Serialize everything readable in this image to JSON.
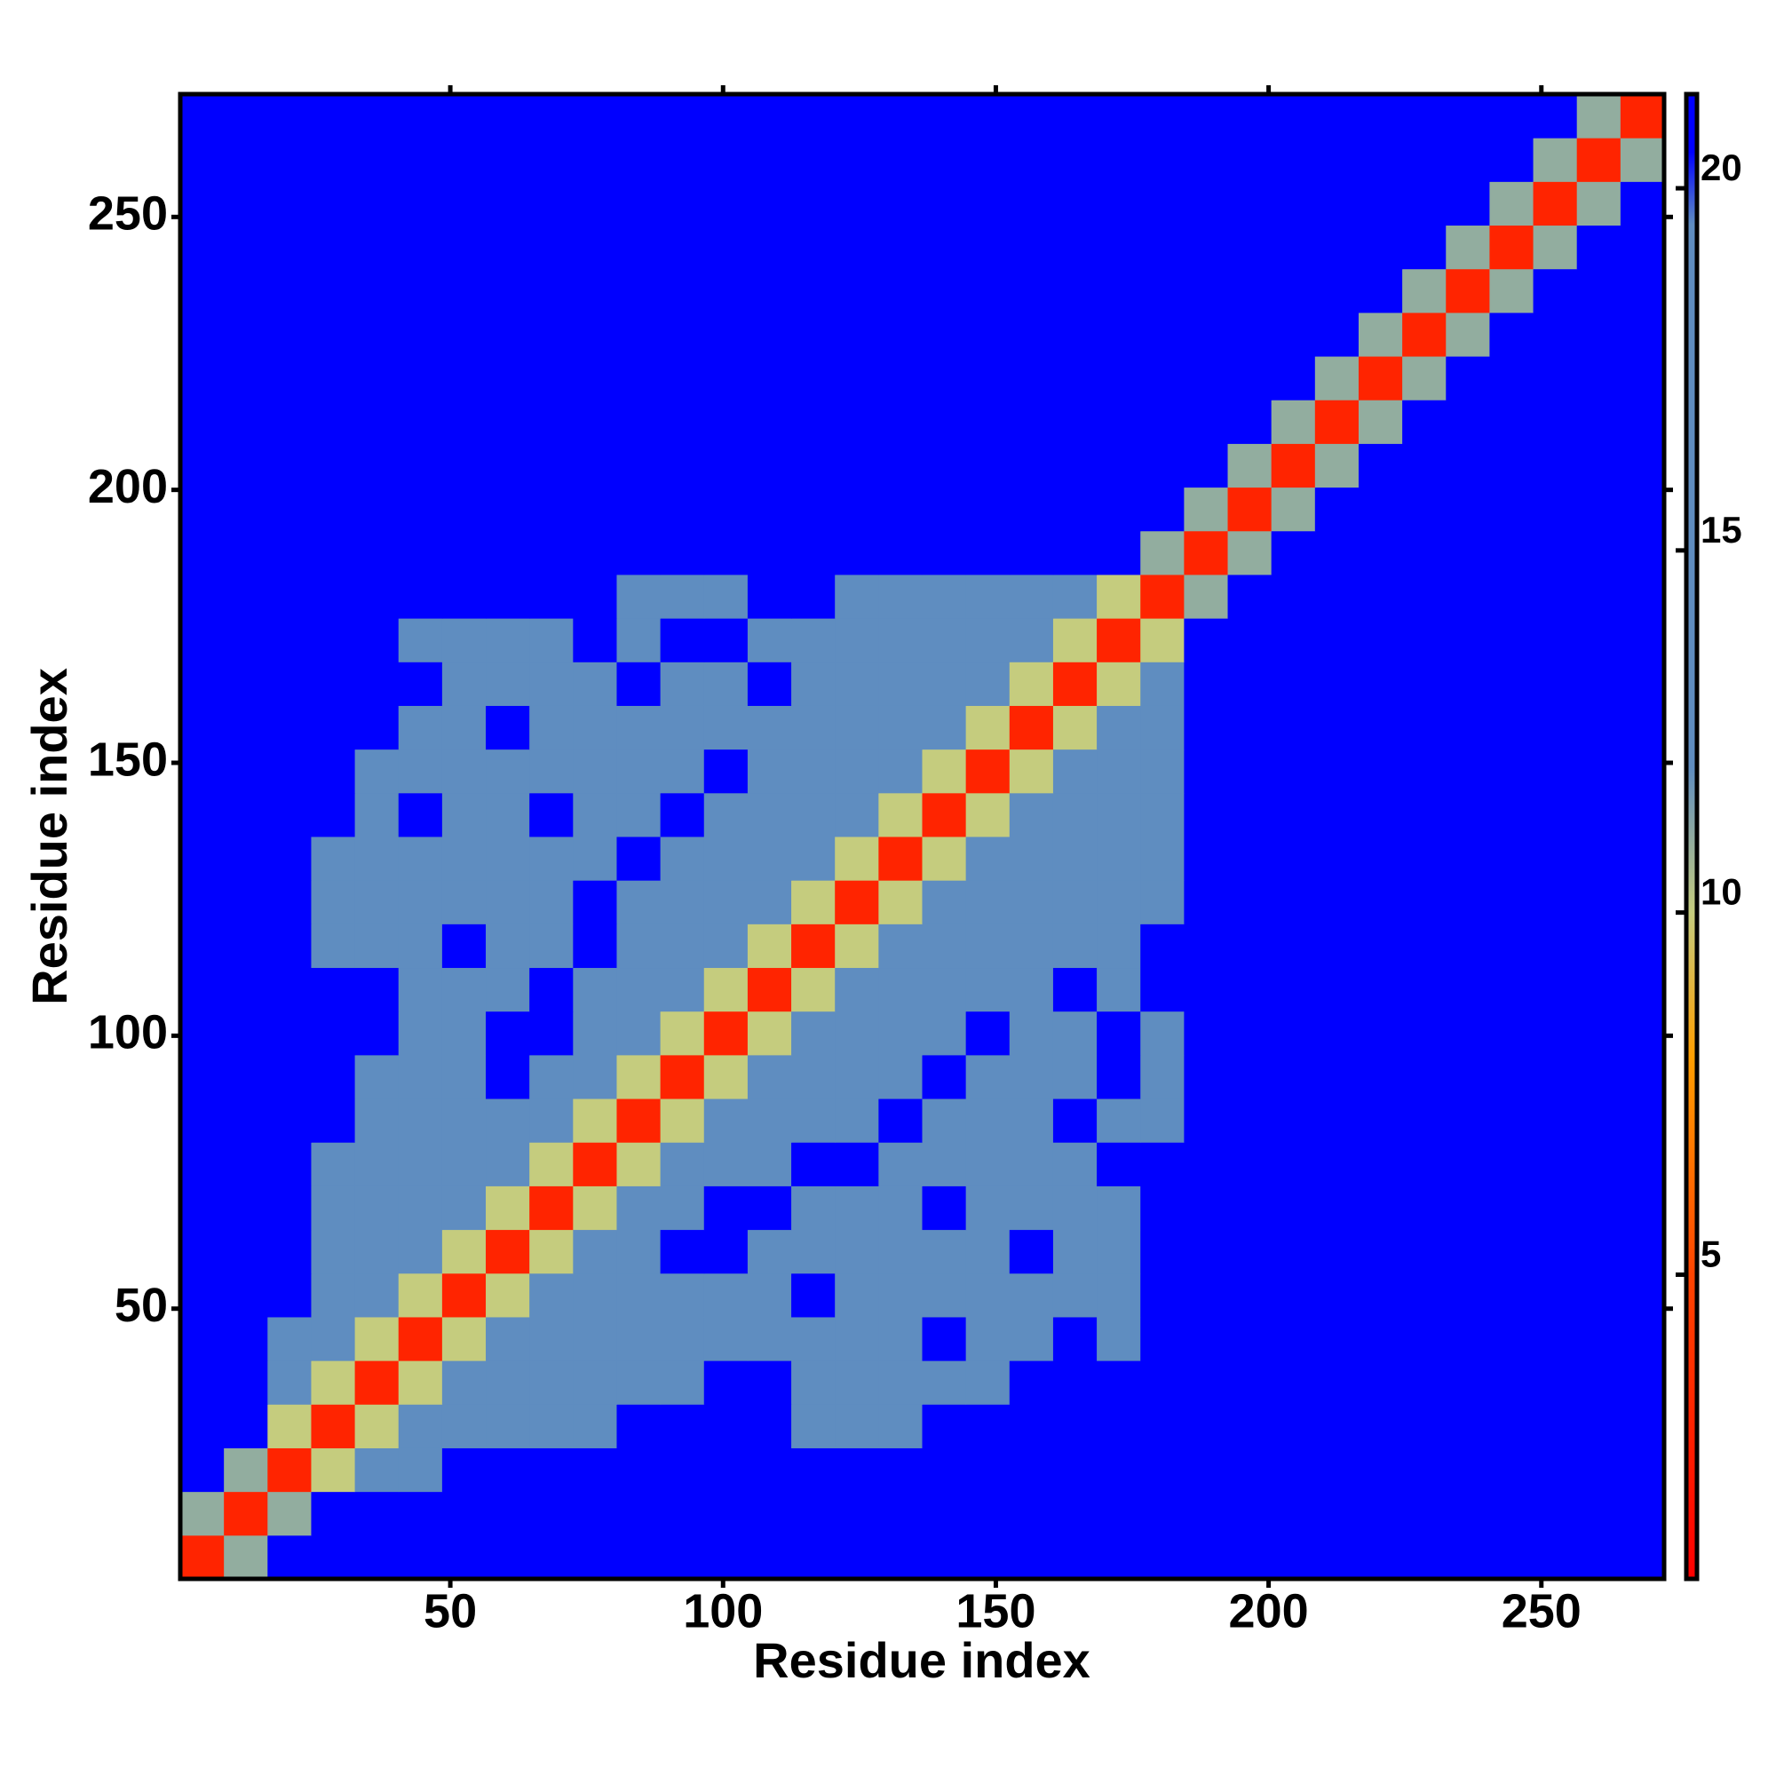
{
  "chart_data": {
    "type": "heatmap",
    "x_label": "Residue index",
    "y_label": "Residue index",
    "xlim": [
      0.5,
      272.5
    ],
    "ylim": [
      0.5,
      272.5
    ],
    "xticks": [
      50,
      100,
      150,
      200,
      250
    ],
    "yticks": [
      50,
      100,
      150,
      200,
      250
    ],
    "bin_edges": [
      0.5,
      8.5,
      16.5,
      24.5,
      32.5,
      40.5,
      48.5,
      56.5,
      64.5,
      72.5,
      80.5,
      88.5,
      96.5,
      104.5,
      112.5,
      120.5,
      128.5,
      136.5,
      144.5,
      152.5,
      160.5,
      168.5,
      176.5,
      184.5,
      192.5,
      200.5,
      208.5,
      216.5,
      224.5,
      232.5,
      240.5,
      248.5,
      256.5,
      264.5,
      272.5
    ],
    "zlim": [
      0.8,
      21.3
    ],
    "zticks": [
      5,
      10,
      15,
      20
    ],
    "colorscale": [
      [
        0.8,
        "#ff0000"
      ],
      [
        5,
        "#ff4400"
      ],
      [
        8,
        "#ff9f00"
      ],
      [
        10,
        "#c5cc7e"
      ],
      [
        12,
        "#5f8dc0"
      ],
      [
        19.5,
        "#5f8dc0"
      ],
      [
        20.5,
        "#0000ff"
      ],
      [
        21.3,
        "#0000ff"
      ]
    ],
    "values": [
      [
        3,
        11,
        21,
        21,
        21,
        21,
        21,
        21,
        21,
        21,
        21,
        21,
        21,
        21,
        21,
        21,
        21,
        21,
        21,
        21,
        21,
        21,
        21,
        21,
        21,
        21,
        21,
        21,
        21,
        21,
        21,
        21,
        21,
        21
      ],
      [
        11,
        3,
        11,
        21,
        21,
        21,
        21,
        21,
        21,
        21,
        21,
        21,
        21,
        21,
        21,
        21,
        21,
        21,
        21,
        21,
        21,
        21,
        21,
        21,
        21,
        21,
        21,
        21,
        21,
        21,
        21,
        21,
        21,
        21
      ],
      [
        21,
        11,
        3,
        10,
        15,
        15,
        21,
        21,
        21,
        21,
        21,
        21,
        21,
        21,
        21,
        21,
        21,
        21,
        21,
        21,
        21,
        21,
        21,
        21,
        21,
        21,
        21,
        21,
        21,
        21,
        21,
        21,
        21,
        21
      ],
      [
        21,
        21,
        10,
        3,
        10,
        13,
        15,
        15,
        15,
        15,
        21,
        21,
        21,
        21,
        15,
        15,
        15,
        21,
        21,
        21,
        21,
        21,
        21,
        21,
        21,
        21,
        21,
        21,
        21,
        21,
        21,
        21,
        21,
        21
      ],
      [
        21,
        21,
        15,
        10,
        3,
        10,
        13,
        15,
        15,
        15,
        15,
        15,
        21,
        21,
        15,
        15,
        15,
        15,
        15,
        21,
        21,
        21,
        21,
        21,
        21,
        21,
        21,
        21,
        21,
        21,
        21,
        21,
        21,
        21
      ],
      [
        21,
        21,
        15,
        13,
        10,
        3,
        10,
        13,
        15,
        15,
        15,
        15,
        15,
        15,
        15,
        15,
        15,
        21,
        15,
        15,
        21,
        15,
        21,
        21,
        21,
        21,
        21,
        21,
        21,
        21,
        21,
        21,
        21,
        21
      ],
      [
        21,
        21,
        21,
        15,
        13,
        10,
        3,
        10,
        13,
        15,
        15,
        15,
        15,
        15,
        21,
        15,
        15,
        15,
        15,
        15,
        15,
        15,
        21,
        21,
        21,
        21,
        21,
        21,
        21,
        21,
        21,
        21,
        21,
        21
      ],
      [
        21,
        21,
        21,
        15,
        15,
        13,
        10,
        3,
        10,
        13,
        15,
        21,
        21,
        15,
        15,
        15,
        15,
        15,
        15,
        21,
        15,
        15,
        21,
        21,
        21,
        21,
        21,
        21,
        21,
        21,
        21,
        21,
        21,
        21
      ],
      [
        21,
        21,
        21,
        15,
        15,
        15,
        13,
        10,
        3,
        10,
        13,
        15,
        21,
        21,
        15,
        15,
        15,
        21,
        15,
        15,
        15,
        15,
        21,
        21,
        21,
        21,
        21,
        21,
        21,
        21,
        21,
        21,
        21,
        21
      ],
      [
        21,
        21,
        21,
        15,
        15,
        15,
        15,
        13,
        10,
        3,
        10,
        13,
        15,
        15,
        21,
        21,
        15,
        15,
        15,
        15,
        15,
        21,
        21,
        21,
        21,
        21,
        21,
        21,
        21,
        21,
        21,
        21,
        21,
        21
      ],
      [
        21,
        21,
        21,
        21,
        15,
        15,
        15,
        15,
        13,
        10,
        3,
        10,
        13,
        15,
        15,
        15,
        21,
        15,
        15,
        15,
        21,
        15,
        15,
        21,
        21,
        21,
        21,
        21,
        21,
        21,
        21,
        21,
        21,
        21
      ],
      [
        21,
        21,
        21,
        21,
        15,
        15,
        15,
        21,
        15,
        13,
        10,
        3,
        10,
        13,
        15,
        15,
        15,
        21,
        15,
        15,
        15,
        21,
        15,
        21,
        21,
        21,
        21,
        21,
        21,
        21,
        21,
        21,
        21,
        21
      ],
      [
        21,
        21,
        21,
        21,
        21,
        15,
        15,
        21,
        21,
        15,
        13,
        10,
        3,
        10,
        13,
        15,
        15,
        15,
        21,
        15,
        15,
        21,
        15,
        21,
        21,
        21,
        21,
        21,
        21,
        21,
        21,
        21,
        21,
        21
      ],
      [
        21,
        21,
        21,
        21,
        21,
        15,
        15,
        15,
        21,
        15,
        15,
        13,
        10,
        3,
        10,
        13,
        15,
        15,
        15,
        15,
        21,
        15,
        21,
        21,
        21,
        21,
        21,
        21,
        21,
        21,
        21,
        21,
        21,
        21
      ],
      [
        21,
        21,
        21,
        15,
        15,
        15,
        21,
        15,
        15,
        21,
        15,
        15,
        13,
        10,
        3,
        10,
        13,
        15,
        15,
        15,
        15,
        15,
        21,
        21,
        21,
        21,
        21,
        21,
        21,
        21,
        21,
        21,
        21,
        21
      ],
      [
        21,
        21,
        21,
        15,
        15,
        15,
        15,
        15,
        15,
        21,
        15,
        15,
        15,
        13,
        10,
        3,
        10,
        13,
        15,
        15,
        15,
        15,
        15,
        21,
        21,
        21,
        21,
        21,
        21,
        21,
        21,
        21,
        21,
        21
      ],
      [
        21,
        21,
        21,
        15,
        15,
        15,
        15,
        15,
        15,
        15,
        21,
        15,
        15,
        15,
        13,
        10,
        3,
        10,
        13,
        15,
        15,
        15,
        15,
        21,
        21,
        21,
        21,
        21,
        21,
        21,
        21,
        21,
        21,
        21
      ],
      [
        21,
        21,
        21,
        21,
        15,
        21,
        15,
        15,
        21,
        15,
        15,
        21,
        15,
        15,
        15,
        13,
        10,
        3,
        10,
        13,
        15,
        15,
        15,
        21,
        21,
        21,
        21,
        21,
        21,
        21,
        21,
        21,
        21,
        21
      ],
      [
        21,
        21,
        21,
        21,
        15,
        15,
        15,
        15,
        15,
        15,
        15,
        15,
        21,
        15,
        15,
        15,
        13,
        10,
        3,
        10,
        13,
        15,
        15,
        21,
        21,
        21,
        21,
        21,
        21,
        21,
        21,
        21,
        21,
        21
      ],
      [
        21,
        21,
        21,
        21,
        21,
        15,
        15,
        21,
        15,
        15,
        15,
        15,
        15,
        15,
        15,
        15,
        15,
        13,
        10,
        3,
        10,
        13,
        15,
        21,
        21,
        21,
        21,
        21,
        21,
        21,
        21,
        21,
        21,
        21
      ],
      [
        21,
        21,
        21,
        21,
        21,
        21,
        15,
        15,
        15,
        15,
        21,
        15,
        15,
        21,
        15,
        15,
        15,
        15,
        13,
        10,
        3,
        10,
        13,
        21,
        21,
        21,
        21,
        21,
        21,
        21,
        21,
        21,
        21,
        21
      ],
      [
        21,
        21,
        21,
        21,
        21,
        15,
        15,
        15,
        15,
        21,
        15,
        21,
        21,
        15,
        15,
        15,
        15,
        15,
        15,
        13,
        10,
        3,
        10,
        21,
        21,
        21,
        21,
        21,
        21,
        21,
        21,
        21,
        21,
        21
      ],
      [
        21,
        21,
        21,
        21,
        21,
        21,
        21,
        21,
        21,
        21,
        15,
        15,
        15,
        21,
        21,
        15,
        15,
        15,
        15,
        15,
        13,
        10,
        3,
        11,
        21,
        21,
        21,
        21,
        21,
        21,
        21,
        21,
        21,
        21
      ],
      [
        21,
        21,
        21,
        21,
        21,
        21,
        21,
        21,
        21,
        21,
        21,
        21,
        21,
        21,
        21,
        21,
        21,
        21,
        21,
        21,
        21,
        21,
        11,
        3,
        11,
        21,
        21,
        21,
        21,
        21,
        21,
        21,
        21,
        21
      ],
      [
        21,
        21,
        21,
        21,
        21,
        21,
        21,
        21,
        21,
        21,
        21,
        21,
        21,
        21,
        21,
        21,
        21,
        21,
        21,
        21,
        21,
        21,
        21,
        11,
        3,
        11,
        21,
        21,
        21,
        21,
        21,
        21,
        21,
        21
      ],
      [
        21,
        21,
        21,
        21,
        21,
        21,
        21,
        21,
        21,
        21,
        21,
        21,
        21,
        21,
        21,
        21,
        21,
        21,
        21,
        21,
        21,
        21,
        21,
        21,
        11,
        3,
        11,
        21,
        21,
        21,
        21,
        21,
        21,
        21
      ],
      [
        21,
        21,
        21,
        21,
        21,
        21,
        21,
        21,
        21,
        21,
        21,
        21,
        21,
        21,
        21,
        21,
        21,
        21,
        21,
        21,
        21,
        21,
        21,
        21,
        21,
        11,
        3,
        11,
        21,
        21,
        21,
        21,
        21,
        21
      ],
      [
        21,
        21,
        21,
        21,
        21,
        21,
        21,
        21,
        21,
        21,
        21,
        21,
        21,
        21,
        21,
        21,
        21,
        21,
        21,
        21,
        21,
        21,
        21,
        21,
        21,
        21,
        11,
        3,
        11,
        21,
        21,
        21,
        21,
        21
      ],
      [
        21,
        21,
        21,
        21,
        21,
        21,
        21,
        21,
        21,
        21,
        21,
        21,
        21,
        21,
        21,
        21,
        21,
        21,
        21,
        21,
        21,
        21,
        21,
        21,
        21,
        21,
        21,
        11,
        3,
        11,
        21,
        21,
        21,
        21
      ],
      [
        21,
        21,
        21,
        21,
        21,
        21,
        21,
        21,
        21,
        21,
        21,
        21,
        21,
        21,
        21,
        21,
        21,
        21,
        21,
        21,
        21,
        21,
        21,
        21,
        21,
        21,
        21,
        21,
        11,
        3,
        11,
        21,
        21,
        21
      ],
      [
        21,
        21,
        21,
        21,
        21,
        21,
        21,
        21,
        21,
        21,
        21,
        21,
        21,
        21,
        21,
        21,
        21,
        21,
        21,
        21,
        21,
        21,
        21,
        21,
        21,
        21,
        21,
        21,
        21,
        11,
        3,
        11,
        21,
        21
      ],
      [
        21,
        21,
        21,
        21,
        21,
        21,
        21,
        21,
        21,
        21,
        21,
        21,
        21,
        21,
        21,
        21,
        21,
        21,
        21,
        21,
        21,
        21,
        21,
        21,
        21,
        21,
        21,
        21,
        21,
        21,
        11,
        3,
        11,
        21
      ],
      [
        21,
        21,
        21,
        21,
        21,
        21,
        21,
        21,
        21,
        21,
        21,
        21,
        21,
        21,
        21,
        21,
        21,
        21,
        21,
        21,
        21,
        21,
        21,
        21,
        21,
        21,
        21,
        21,
        21,
        21,
        21,
        11,
        3,
        11
      ],
      [
        21,
        21,
        21,
        21,
        21,
        21,
        21,
        21,
        21,
        21,
        21,
        21,
        21,
        21,
        21,
        21,
        21,
        21,
        21,
        21,
        21,
        21,
        21,
        21,
        21,
        21,
        21,
        21,
        21,
        21,
        21,
        21,
        11,
        3
      ]
    ]
  }
}
